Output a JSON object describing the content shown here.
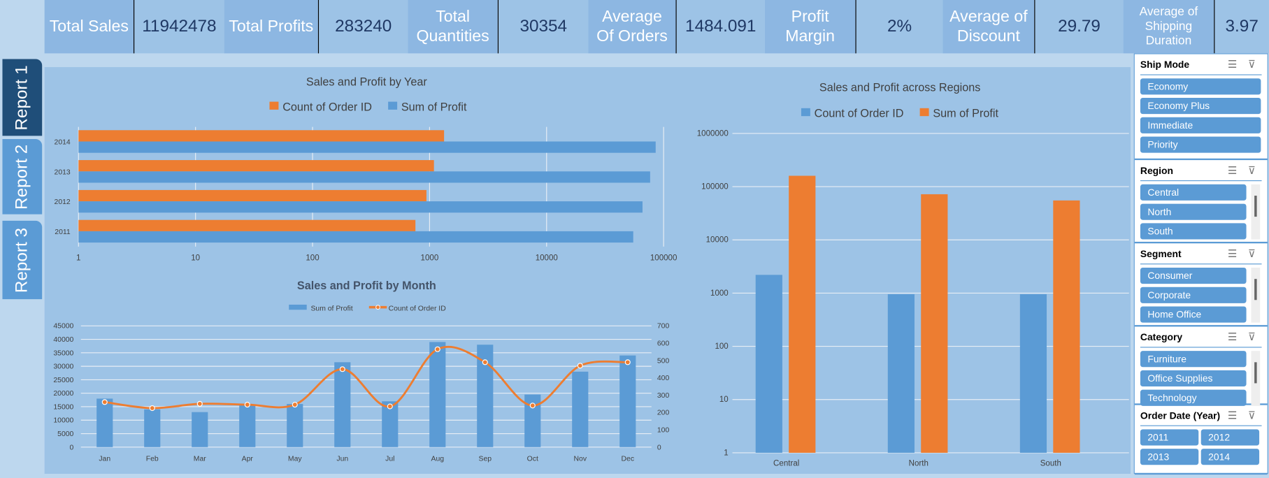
{
  "kpis": [
    {
      "label": "Total Sales",
      "value": "11942478"
    },
    {
      "label": "Total Profits",
      "value": "283240"
    },
    {
      "label": "Total Quantities",
      "value": "30354"
    },
    {
      "label": "Average Of Orders",
      "value": "1484.091"
    },
    {
      "label": "Profit Margin",
      "value": "2%"
    },
    {
      "label": "Average of Discount",
      "value": "29.79"
    },
    {
      "label": "Average of Shipping Duration",
      "value": "3.97"
    }
  ],
  "tabs": [
    "Report 1",
    "Report 2",
    "Report 3"
  ],
  "colors": {
    "blue": "#5B9BD5",
    "orange": "#ED7D31",
    "panel": "#9DC3E6",
    "active_tab": "#1F4E79"
  },
  "slicers": [
    {
      "title": "Ship Mode",
      "items": [
        "Economy",
        "Economy Plus",
        "Immediate",
        "Priority"
      ]
    },
    {
      "title": "Region",
      "items": [
        "Central",
        "North",
        "South"
      ]
    },
    {
      "title": "Segment",
      "items": [
        "Consumer",
        "Corporate",
        "Home Office"
      ]
    },
    {
      "title": "Category",
      "items": [
        "Furniture",
        "Office Supplies",
        "Technology"
      ]
    },
    {
      "title": "Order Date (Year)",
      "items": [
        "2011",
        "2012",
        "2013",
        "2014"
      ]
    }
  ],
  "chart_data": [
    {
      "type": "bar",
      "orientation": "horizontal",
      "title": "Sales and Profit by Year",
      "scale": "log",
      "xlim": [
        1,
        100000
      ],
      "xticks": [
        "1",
        "10",
        "100",
        "1000",
        "10000",
        "100000"
      ],
      "categories": [
        "2011",
        "2012",
        "2013",
        "2014"
      ],
      "legend": "top",
      "series": [
        {
          "name": "Count of Order ID",
          "color": "#ED7D31",
          "values": [
            757,
            940,
            1090,
            1330
          ]
        },
        {
          "name": "Sum of Profit",
          "color": "#5B9BD5",
          "values": [
            55000,
            66000,
            76700,
            85500
          ]
        }
      ]
    },
    {
      "type": "bar+line",
      "title": "Sales and Profit by Month",
      "legend": "top",
      "categories": [
        "Jan",
        "Feb",
        "Mar",
        "Apr",
        "May",
        "Jun",
        "Jul",
        "Aug",
        "Sep",
        "Oct",
        "Nov",
        "Dec"
      ],
      "ylim": [
        0,
        45000
      ],
      "yticks": [
        "0",
        "5000",
        "10000",
        "15000",
        "20000",
        "25000",
        "30000",
        "35000",
        "40000",
        "45000"
      ],
      "y2lim": [
        0,
        700
      ],
      "y2ticks": [
        "0",
        "100",
        "200",
        "300",
        "400",
        "500",
        "600",
        "700"
      ],
      "series": [
        {
          "name": "Sum of Profit",
          "type": "bar",
          "axis": "left",
          "values": [
            18000,
            14000,
            13000,
            15500,
            16000,
            31500,
            17000,
            39000,
            38000,
            19500,
            28000,
            34000
          ]
        },
        {
          "name": "Count of Order ID",
          "type": "line",
          "axis": "right",
          "values": [
            260,
            225,
            250,
            245,
            245,
            450,
            235,
            565,
            490,
            240,
            470,
            490
          ]
        }
      ]
    },
    {
      "type": "bar",
      "title": "Sales and Profit across Regions",
      "scale": "log",
      "ylim": [
        1,
        1000000
      ],
      "legend": "top",
      "yticks": [
        "1",
        "10",
        "100",
        "1000",
        "10000",
        "100000",
        "1000000"
      ],
      "categories": [
        "Central",
        "North",
        "South"
      ],
      "series": [
        {
          "name": "Count of Order ID",
          "color": "#5B9BD5",
          "values": [
            2200,
            950,
            950
          ]
        },
        {
          "name": "Sum of Profit",
          "color": "#ED7D31",
          "values": [
            160000,
            72000,
            55000
          ]
        }
      ]
    }
  ]
}
